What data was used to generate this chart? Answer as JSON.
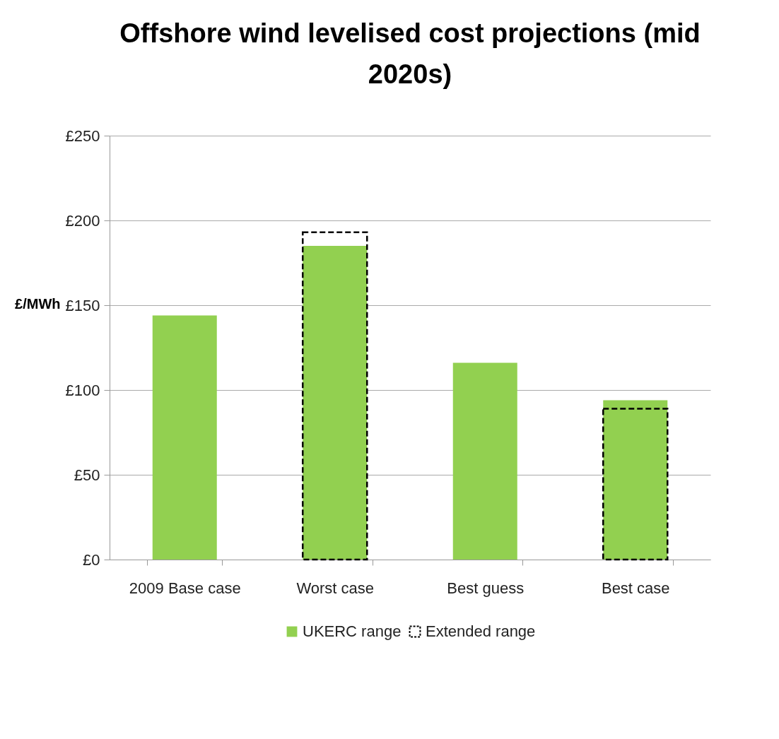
{
  "chart_data": {
    "type": "bar",
    "title": "Offshore wind levelised cost projections (mid 2020s)",
    "ylabel": "£/MWh",
    "categories": [
      "2009 Base case",
      "Worst case",
      "Best guess",
      "Best case"
    ],
    "series": [
      {
        "name": "UKERC range",
        "color": "#92d050",
        "values": [
          144,
          185,
          116,
          94
        ]
      },
      {
        "name": "Extended range",
        "color": "#000000",
        "line_style": "dashed",
        "values": [
          null,
          193,
          null,
          89
        ]
      }
    ],
    "ylim": [
      0,
      250
    ],
    "yticks": [
      {
        "value": 0,
        "label": "£0"
      },
      {
        "value": 50,
        "label": "£50"
      },
      {
        "value": 100,
        "label": "£100"
      },
      {
        "value": 150,
        "label": "£150"
      },
      {
        "value": 200,
        "label": "£200"
      },
      {
        "value": 250,
        "label": "£250"
      }
    ],
    "grid": "y",
    "legend": "bottom"
  }
}
